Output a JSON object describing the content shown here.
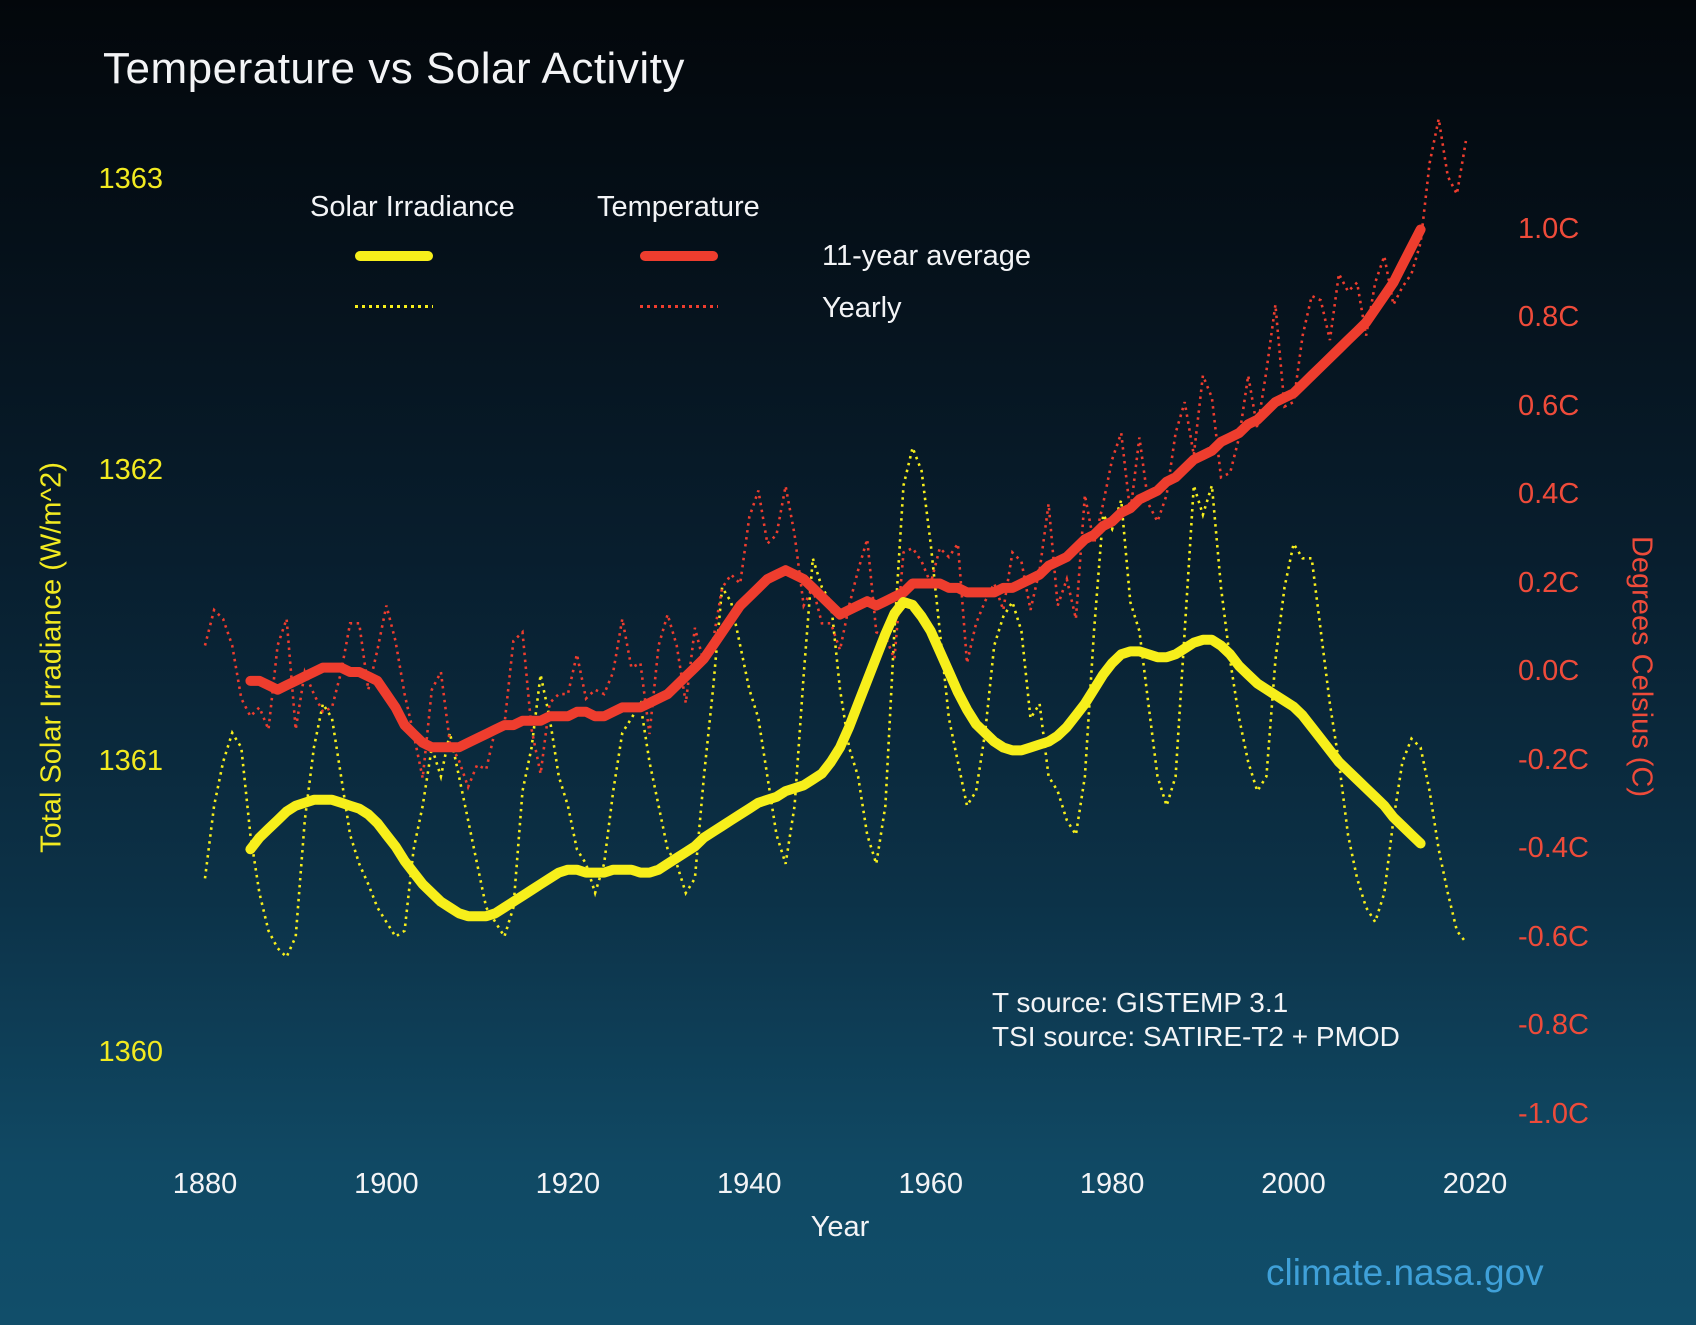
{
  "title": "Temperature vs Solar Activity",
  "legend": {
    "solar_label": "Solar Irradiance",
    "temp_label": "Temperature",
    "avg_label": "11-year average",
    "yearly_label": "Yearly"
  },
  "axes": {
    "x": {
      "title": "Year",
      "tick_labels": [
        "1880",
        "1900",
        "1920",
        "1940",
        "1960",
        "1980",
        "2000",
        "2020"
      ],
      "tick_values": [
        1880,
        1900,
        1920,
        1940,
        1960,
        1980,
        2000,
        2020
      ]
    },
    "left": {
      "title": "Total Solar Irradiance (W/m^2)",
      "tick_labels": [
        "1363",
        "1362",
        "1361",
        "1360"
      ],
      "tick_values": [
        1363,
        1362,
        1361,
        1360
      ]
    },
    "right": {
      "title": "Degrees Celsius (C)",
      "tick_labels": [
        "1.0C",
        "0.8C",
        "0.6C",
        "0.4C",
        "0.2C",
        "0.0C",
        "-0.2C",
        "-0.4C",
        "-0.6C",
        "-0.8C",
        "-1.0C"
      ],
      "tick_values": [
        1.0,
        0.8,
        0.6,
        0.4,
        0.2,
        0.0,
        -0.2,
        -0.4,
        -0.6,
        -0.8,
        -1.0
      ]
    }
  },
  "annotations": {
    "t_source": "T source: GISTEMP 3.1",
    "tsi_source": "TSI source: SATIRE-T2 + PMOD",
    "credit": "climate.nasa.gov"
  },
  "colors": {
    "background_top": "#03070b",
    "background_bottom": "#114e6a",
    "yellow": "#f7ef1b",
    "red": "#ee3d2e",
    "white_text": "#f3f4f6",
    "credit_blue": "#3fa0d8"
  },
  "chart_data": {
    "type": "line",
    "x_range": [
      1880,
      2020
    ],
    "tsi_axis_label": "Total Solar Irradiance (W/m^2)",
    "temp_axis_label": "Degrees Celsius (C)",
    "tsi_axis_ticks": [
      1360,
      1361,
      1362,
      1363
    ],
    "temp_axis_ticks": [
      -1.0,
      -0.8,
      -0.6,
      -0.4,
      -0.2,
      0.0,
      0.2,
      0.4,
      0.6,
      0.8,
      1.0
    ],
    "legend_position": "top-left",
    "grid": false,
    "series": [
      {
        "name": "Solar Irradiance - Yearly",
        "axis": "tsi",
        "style": "dotted",
        "color": "#f7ef1b",
        "start_year": 1880,
        "values": [
          1360.6,
          1360.85,
          1361.0,
          1361.1,
          1361.05,
          1360.75,
          1360.55,
          1360.42,
          1360.36,
          1360.33,
          1360.4,
          1360.8,
          1361.05,
          1361.2,
          1361.15,
          1360.95,
          1360.75,
          1360.65,
          1360.58,
          1360.5,
          1360.45,
          1360.4,
          1360.42,
          1360.7,
          1360.85,
          1361.05,
          1360.95,
          1361.1,
          1360.95,
          1360.8,
          1360.65,
          1360.5,
          1360.45,
          1360.4,
          1360.5,
          1360.9,
          1361.05,
          1361.3,
          1361.15,
          1360.95,
          1360.85,
          1360.7,
          1360.65,
          1360.55,
          1360.65,
          1360.9,
          1361.1,
          1361.15,
          1361.2,
          1361.0,
          1360.85,
          1360.7,
          1360.65,
          1360.55,
          1360.6,
          1360.95,
          1361.25,
          1361.6,
          1361.55,
          1361.4,
          1361.25,
          1361.15,
          1360.95,
          1360.75,
          1360.65,
          1360.85,
          1361.3,
          1361.7,
          1361.6,
          1361.55,
          1361.25,
          1361.05,
          1360.95,
          1360.75,
          1360.65,
          1360.85,
          1361.45,
          1361.95,
          1362.08,
          1362.0,
          1361.75,
          1361.45,
          1361.15,
          1361.0,
          1360.85,
          1360.9,
          1361.1,
          1361.4,
          1361.5,
          1361.55,
          1361.45,
          1361.15,
          1361.2,
          1360.95,
          1360.9,
          1360.8,
          1360.75,
          1360.95,
          1361.45,
          1361.85,
          1361.8,
          1361.9,
          1361.55,
          1361.45,
          1361.2,
          1360.95,
          1360.85,
          1360.95,
          1361.45,
          1361.95,
          1361.85,
          1361.95,
          1361.6,
          1361.35,
          1361.15,
          1361.0,
          1360.9,
          1360.95,
          1361.35,
          1361.6,
          1361.75,
          1361.7,
          1361.7,
          1361.45,
          1361.2,
          1361.0,
          1360.75,
          1360.6,
          1360.5,
          1360.45,
          1360.55,
          1360.8,
          1361.0,
          1361.08,
          1361.05,
          1360.9,
          1360.7,
          1360.55,
          1360.42,
          1360.38
        ]
      },
      {
        "name": "Solar Irradiance - 11-year average",
        "axis": "tsi",
        "style": "solid",
        "color": "#f7ef1b",
        "start_year": 1885,
        "values": [
          1360.7,
          1360.74,
          1360.77,
          1360.8,
          1360.83,
          1360.85,
          1360.86,
          1360.87,
          1360.87,
          1360.87,
          1360.86,
          1360.85,
          1360.84,
          1360.82,
          1360.79,
          1360.75,
          1360.71,
          1360.66,
          1360.62,
          1360.58,
          1360.55,
          1360.52,
          1360.5,
          1360.48,
          1360.47,
          1360.47,
          1360.47,
          1360.48,
          1360.5,
          1360.52,
          1360.54,
          1360.56,
          1360.58,
          1360.6,
          1360.62,
          1360.63,
          1360.63,
          1360.62,
          1360.62,
          1360.62,
          1360.63,
          1360.63,
          1360.63,
          1360.62,
          1360.62,
          1360.63,
          1360.65,
          1360.67,
          1360.69,
          1360.71,
          1360.74,
          1360.76,
          1360.78,
          1360.8,
          1360.82,
          1360.84,
          1360.86,
          1360.87,
          1360.88,
          1360.9,
          1360.91,
          1360.92,
          1360.94,
          1360.96,
          1361.0,
          1361.05,
          1361.12,
          1361.2,
          1361.28,
          1361.36,
          1361.44,
          1361.51,
          1361.55,
          1361.54,
          1361.5,
          1361.45,
          1361.38,
          1361.31,
          1361.24,
          1361.18,
          1361.13,
          1361.1,
          1361.07,
          1361.05,
          1361.04,
          1361.04,
          1361.05,
          1361.06,
          1361.07,
          1361.09,
          1361.12,
          1361.16,
          1361.2,
          1361.25,
          1361.3,
          1361.34,
          1361.37,
          1361.38,
          1361.38,
          1361.37,
          1361.36,
          1361.36,
          1361.37,
          1361.39,
          1361.41,
          1361.42,
          1361.42,
          1361.4,
          1361.37,
          1361.33,
          1361.3,
          1361.27,
          1361.25,
          1361.23,
          1361.21,
          1361.19,
          1361.16,
          1361.12,
          1361.08,
          1361.04,
          1361.0,
          1360.97,
          1360.94,
          1360.91,
          1360.88,
          1360.85,
          1360.81,
          1360.78,
          1360.75,
          1360.72
        ]
      },
      {
        "name": "Temperature - Yearly",
        "axis": "temp",
        "style": "dotted",
        "color": "#ee3d2e",
        "start_year": 1880,
        "values": [
          0.06,
          0.14,
          0.12,
          0.06,
          -0.06,
          -0.1,
          -0.08,
          -0.13,
          0.06,
          0.12,
          -0.13,
          0.0,
          -0.05,
          -0.09,
          -0.08,
          0.0,
          0.11,
          0.11,
          -0.04,
          0.05,
          0.15,
          0.07,
          -0.05,
          -0.14,
          -0.24,
          -0.04,
          0.0,
          -0.16,
          -0.2,
          -0.26,
          -0.21,
          -0.22,
          -0.13,
          -0.12,
          0.07,
          0.09,
          -0.13,
          -0.23,
          -0.07,
          -0.05,
          -0.05,
          0.04,
          -0.06,
          -0.04,
          -0.05,
          0.0,
          0.12,
          0.01,
          0.02,
          -0.14,
          0.06,
          0.13,
          0.06,
          -0.07,
          0.1,
          0.02,
          0.07,
          0.19,
          0.22,
          0.2,
          0.35,
          0.41,
          0.29,
          0.31,
          0.42,
          0.31,
          0.15,
          0.19,
          0.11,
          0.11,
          0.05,
          0.15,
          0.23,
          0.3,
          0.09,
          0.08,
          0.03,
          0.27,
          0.28,
          0.25,
          0.2,
          0.28,
          0.26,
          0.29,
          0.02,
          0.11,
          0.16,
          0.2,
          0.14,
          0.27,
          0.25,
          0.14,
          0.23,
          0.38,
          0.15,
          0.21,
          0.12,
          0.4,
          0.29,
          0.38,
          0.48,
          0.54,
          0.36,
          0.53,
          0.38,
          0.34,
          0.4,
          0.54,
          0.61,
          0.49,
          0.67,
          0.62,
          0.44,
          0.45,
          0.53,
          0.67,
          0.55,
          0.68,
          0.83,
          0.6,
          0.61,
          0.76,
          0.85,
          0.84,
          0.75,
          0.9,
          0.86,
          0.88,
          0.76,
          0.88,
          0.94,
          0.83,
          0.87,
          0.9,
          0.97,
          1.15,
          1.25,
          1.12,
          1.08,
          1.2
        ]
      },
      {
        "name": "Temperature - 11-year average",
        "axis": "temp",
        "style": "solid",
        "color": "#ee3d2e",
        "start_year": 1885,
        "values": [
          -0.02,
          -0.02,
          -0.03,
          -0.04,
          -0.03,
          -0.02,
          -0.01,
          0.0,
          0.01,
          0.01,
          0.01,
          0.0,
          0.0,
          -0.01,
          -0.02,
          -0.05,
          -0.08,
          -0.12,
          -0.14,
          -0.16,
          -0.17,
          -0.17,
          -0.17,
          -0.17,
          -0.16,
          -0.15,
          -0.14,
          -0.13,
          -0.12,
          -0.12,
          -0.11,
          -0.11,
          -0.11,
          -0.1,
          -0.1,
          -0.1,
          -0.09,
          -0.09,
          -0.1,
          -0.1,
          -0.09,
          -0.08,
          -0.08,
          -0.08,
          -0.07,
          -0.06,
          -0.05,
          -0.03,
          -0.01,
          0.01,
          0.03,
          0.06,
          0.09,
          0.12,
          0.15,
          0.17,
          0.19,
          0.21,
          0.22,
          0.23,
          0.22,
          0.21,
          0.19,
          0.17,
          0.15,
          0.13,
          0.14,
          0.15,
          0.16,
          0.15,
          0.16,
          0.17,
          0.18,
          0.2,
          0.2,
          0.2,
          0.2,
          0.19,
          0.19,
          0.18,
          0.18,
          0.18,
          0.18,
          0.19,
          0.19,
          0.2,
          0.21,
          0.22,
          0.24,
          0.25,
          0.26,
          0.28,
          0.3,
          0.31,
          0.33,
          0.34,
          0.36,
          0.37,
          0.39,
          0.4,
          0.41,
          0.43,
          0.44,
          0.46,
          0.48,
          0.49,
          0.5,
          0.52,
          0.53,
          0.54,
          0.56,
          0.57,
          0.59,
          0.61,
          0.62,
          0.63,
          0.65,
          0.67,
          0.69,
          0.71,
          0.73,
          0.75,
          0.77,
          0.79,
          0.82,
          0.85,
          0.88,
          0.92,
          0.96,
          1.0
        ]
      }
    ]
  }
}
